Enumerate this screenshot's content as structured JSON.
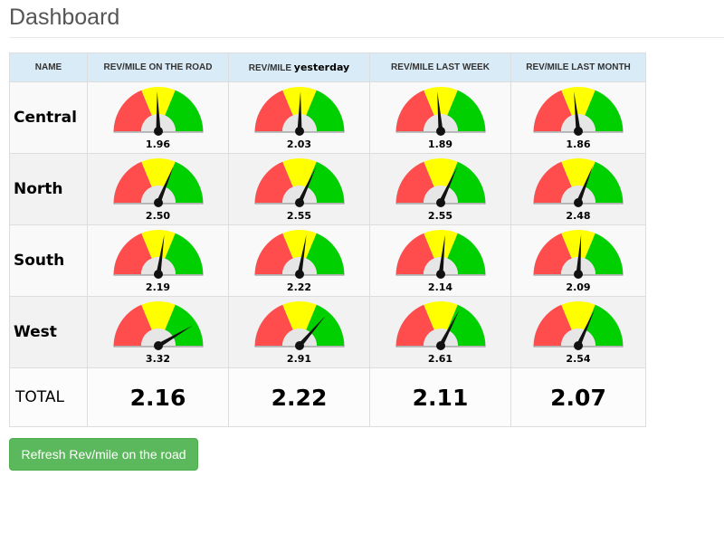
{
  "page": {
    "title": "Dashboard"
  },
  "table": {
    "headers": [
      "NAME",
      "REV/MILE ON THE ROAD",
      "REV/MILE",
      "LAST WEEK",
      "LAST MONTH"
    ],
    "header_yesterday_word": "yesterday",
    "header_weekly": "REV/MILE LAST WEEK",
    "header_monthly": "REV/MILE LAST MONTH",
    "rows": [
      {
        "name": "Central",
        "values": [
          "1.96",
          "2.03",
          "1.89",
          "1.86"
        ]
      },
      {
        "name": "North",
        "values": [
          "2.50",
          "2.55",
          "2.55",
          "2.48"
        ]
      },
      {
        "name": "South",
        "values": [
          "2.19",
          "2.22",
          "2.14",
          "2.09"
        ]
      },
      {
        "name": "West",
        "values": [
          "3.32",
          "2.91",
          "2.61",
          "2.54"
        ]
      }
    ],
    "total": {
      "label": "TOTAL",
      "values": [
        "2.16",
        "2.22",
        "2.11",
        "2.07"
      ]
    }
  },
  "gauge": {
    "min": 0,
    "max": 4,
    "bands": [
      {
        "from": 0,
        "to": 1.5,
        "color": "#ff4d4d"
      },
      {
        "from": 1.5,
        "to": 2.5,
        "color": "#ffff00"
      },
      {
        "from": 2.5,
        "to": 4,
        "color": "#00d000"
      }
    ],
    "needle_color": "#111111"
  },
  "buttons": {
    "refresh_label": "Refresh Rev/mile on the road"
  }
}
